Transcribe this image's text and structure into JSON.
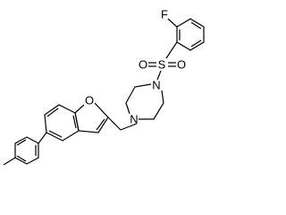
{
  "atoms": [
    {
      "label": "F"
    },
    {
      "label": "S"
    },
    {
      "label": "O"
    },
    {
      "label": "O"
    },
    {
      "label": "N"
    },
    {
      "label": "N"
    },
    {
      "label": "O"
    }
  ]
}
